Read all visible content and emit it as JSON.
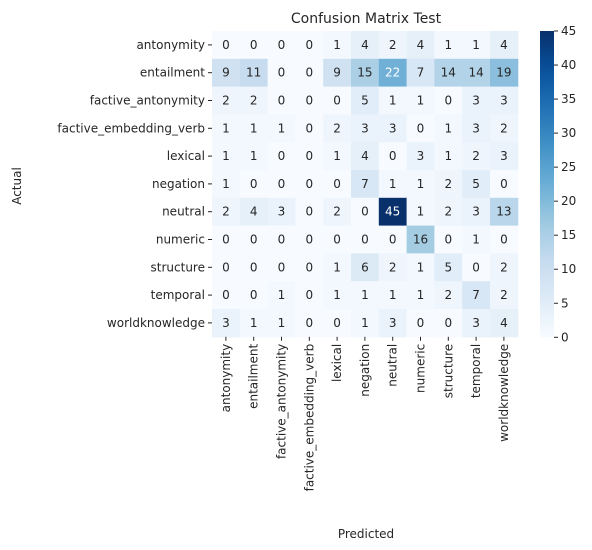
{
  "chart_data": {
    "type": "heatmap",
    "title": "Confusion Matrix Test",
    "xlabel": "Predicted",
    "ylabel": "Actual",
    "row_labels": [
      "antonymity",
      "entailment",
      "factive_antonymity",
      "factive_embedding_verb",
      "lexical",
      "negation",
      "neutral",
      "numeric",
      "structure",
      "temporal",
      "worldknowledge"
    ],
    "col_labels": [
      "antonymity",
      "entailment",
      "factive_antonymity",
      "factive_embedding_verb",
      "lexical",
      "negation",
      "neutral",
      "numeric",
      "structure",
      "temporal",
      "worldknowledge"
    ],
    "values": [
      [
        0,
        0,
        0,
        0,
        1,
        4,
        2,
        4,
        1,
        1,
        4
      ],
      [
        9,
        11,
        0,
        0,
        9,
        15,
        22,
        7,
        14,
        14,
        19
      ],
      [
        2,
        2,
        0,
        0,
        0,
        5,
        1,
        1,
        0,
        3,
        3
      ],
      [
        1,
        1,
        1,
        0,
        2,
        3,
        3,
        0,
        1,
        3,
        2
      ],
      [
        1,
        1,
        0,
        0,
        1,
        4,
        0,
        3,
        1,
        2,
        3
      ],
      [
        1,
        0,
        0,
        0,
        0,
        7,
        1,
        1,
        2,
        5,
        0
      ],
      [
        2,
        4,
        3,
        0,
        2,
        0,
        45,
        1,
        2,
        3,
        13
      ],
      [
        0,
        0,
        0,
        0,
        0,
        0,
        0,
        16,
        0,
        1,
        0
      ],
      [
        0,
        0,
        0,
        0,
        1,
        6,
        2,
        1,
        5,
        0,
        2
      ],
      [
        0,
        0,
        1,
        0,
        1,
        1,
        1,
        1,
        2,
        7,
        2
      ],
      [
        3,
        1,
        1,
        0,
        0,
        1,
        3,
        0,
        0,
        3,
        4
      ]
    ],
    "colorbar": {
      "colormap": "Blues",
      "min": 0,
      "max": 45,
      "ticks": [
        0,
        5,
        10,
        15,
        20,
        25,
        30,
        35,
        40,
        45
      ],
      "low_color": "#f7fbff",
      "high_color": "#08306b"
    }
  }
}
